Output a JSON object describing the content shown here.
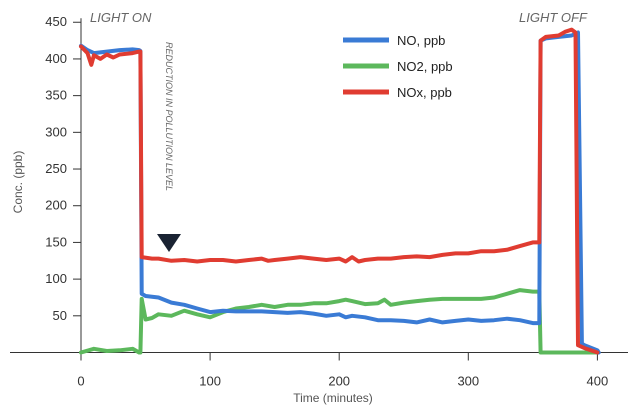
{
  "chart_data": {
    "type": "line",
    "title": "",
    "xlabel": "Time (minutes)",
    "ylabel": "Conc. (ppb)",
    "xlim": [
      0,
      420
    ],
    "ylim": [
      0,
      450
    ],
    "x_ticks": [
      0,
      100,
      200,
      300,
      400
    ],
    "y_ticks": [
      50,
      100,
      150,
      200,
      250,
      300,
      350,
      400,
      450
    ],
    "grid": false,
    "legend_position": "top-right",
    "annotations": {
      "light_on": "LIGHT ON",
      "light_off": "LIGHT OFF",
      "reduction": "REDUCTION IN POLLUTION LEVEL"
    },
    "series": [
      {
        "name": "NO, ppb",
        "color": "#3a7bd5",
        "points": [
          [
            0,
            418
          ],
          [
            5,
            412
          ],
          [
            10,
            408
          ],
          [
            20,
            410
          ],
          [
            30,
            412
          ],
          [
            40,
            413
          ],
          [
            45,
            412
          ],
          [
            46,
            411
          ],
          [
            47,
            80
          ],
          [
            50,
            77
          ],
          [
            60,
            75
          ],
          [
            70,
            68
          ],
          [
            80,
            65
          ],
          [
            90,
            60
          ],
          [
            100,
            55
          ],
          [
            110,
            57
          ],
          [
            120,
            56
          ],
          [
            130,
            56
          ],
          [
            140,
            56
          ],
          [
            150,
            55
          ],
          [
            160,
            54
          ],
          [
            170,
            55
          ],
          [
            180,
            53
          ],
          [
            190,
            50
          ],
          [
            200,
            52
          ],
          [
            205,
            48
          ],
          [
            210,
            50
          ],
          [
            220,
            48
          ],
          [
            230,
            44
          ],
          [
            240,
            44
          ],
          [
            250,
            43
          ],
          [
            260,
            41
          ],
          [
            270,
            45
          ],
          [
            280,
            41
          ],
          [
            290,
            43
          ],
          [
            300,
            45
          ],
          [
            310,
            43
          ],
          [
            320,
            44
          ],
          [
            330,
            46
          ],
          [
            340,
            44
          ],
          [
            350,
            40
          ],
          [
            355,
            40
          ],
          [
            356,
            425
          ],
          [
            360,
            428
          ],
          [
            370,
            430
          ],
          [
            380,
            432
          ],
          [
            385,
            436
          ],
          [
            388,
            12
          ],
          [
            390,
            10
          ],
          [
            400,
            3
          ],
          [
            401,
            0
          ]
        ]
      },
      {
        "name": "NO2, ppb",
        "color": "#5cb85c",
        "points": [
          [
            0,
            0
          ],
          [
            10,
            5
          ],
          [
            20,
            2
          ],
          [
            30,
            3
          ],
          [
            40,
            5
          ],
          [
            45,
            0
          ],
          [
            46,
            0
          ],
          [
            47,
            73
          ],
          [
            50,
            45
          ],
          [
            55,
            47
          ],
          [
            60,
            52
          ],
          [
            70,
            50
          ],
          [
            80,
            57
          ],
          [
            90,
            52
          ],
          [
            100,
            48
          ],
          [
            110,
            55
          ],
          [
            120,
            60
          ],
          [
            130,
            62
          ],
          [
            140,
            65
          ],
          [
            150,
            62
          ],
          [
            160,
            65
          ],
          [
            170,
            65
          ],
          [
            180,
            67
          ],
          [
            190,
            67
          ],
          [
            200,
            70
          ],
          [
            205,
            72
          ],
          [
            210,
            70
          ],
          [
            220,
            66
          ],
          [
            230,
            67
          ],
          [
            235,
            72
          ],
          [
            240,
            65
          ],
          [
            250,
            68
          ],
          [
            260,
            70
          ],
          [
            270,
            72
          ],
          [
            280,
            73
          ],
          [
            290,
            73
          ],
          [
            300,
            73
          ],
          [
            310,
            73
          ],
          [
            320,
            75
          ],
          [
            330,
            80
          ],
          [
            340,
            85
          ],
          [
            350,
            83
          ],
          [
            355,
            83
          ],
          [
            356,
            0
          ],
          [
            400,
            0
          ]
        ]
      },
      {
        "name": "NOx, ppb",
        "color": "#e03c31",
        "points": [
          [
            0,
            417
          ],
          [
            5,
            408
          ],
          [
            8,
            392
          ],
          [
            10,
            405
          ],
          [
            15,
            400
          ],
          [
            20,
            406
          ],
          [
            25,
            402
          ],
          [
            30,
            406
          ],
          [
            40,
            408
          ],
          [
            45,
            410
          ],
          [
            46,
            410
          ],
          [
            47,
            130
          ],
          [
            55,
            128
          ],
          [
            60,
            128
          ],
          [
            70,
            125
          ],
          [
            80,
            126
          ],
          [
            90,
            124
          ],
          [
            100,
            126
          ],
          [
            110,
            126
          ],
          [
            120,
            124
          ],
          [
            130,
            126
          ],
          [
            140,
            128
          ],
          [
            145,
            125
          ],
          [
            150,
            126
          ],
          [
            160,
            128
          ],
          [
            170,
            130
          ],
          [
            180,
            128
          ],
          [
            190,
            126
          ],
          [
            200,
            128
          ],
          [
            205,
            124
          ],
          [
            210,
            130
          ],
          [
            215,
            124
          ],
          [
            220,
            126
          ],
          [
            230,
            128
          ],
          [
            240,
            128
          ],
          [
            250,
            130
          ],
          [
            260,
            131
          ],
          [
            270,
            130
          ],
          [
            280,
            133
          ],
          [
            290,
            135
          ],
          [
            300,
            135
          ],
          [
            310,
            138
          ],
          [
            320,
            138
          ],
          [
            330,
            140
          ],
          [
            340,
            145
          ],
          [
            350,
            150
          ],
          [
            355,
            150
          ],
          [
            356,
            425
          ],
          [
            360,
            430
          ],
          [
            370,
            432
          ],
          [
            375,
            437
          ],
          [
            380,
            440
          ],
          [
            383,
            436
          ],
          [
            385,
            10
          ],
          [
            390,
            6
          ],
          [
            400,
            0
          ]
        ]
      }
    ]
  }
}
